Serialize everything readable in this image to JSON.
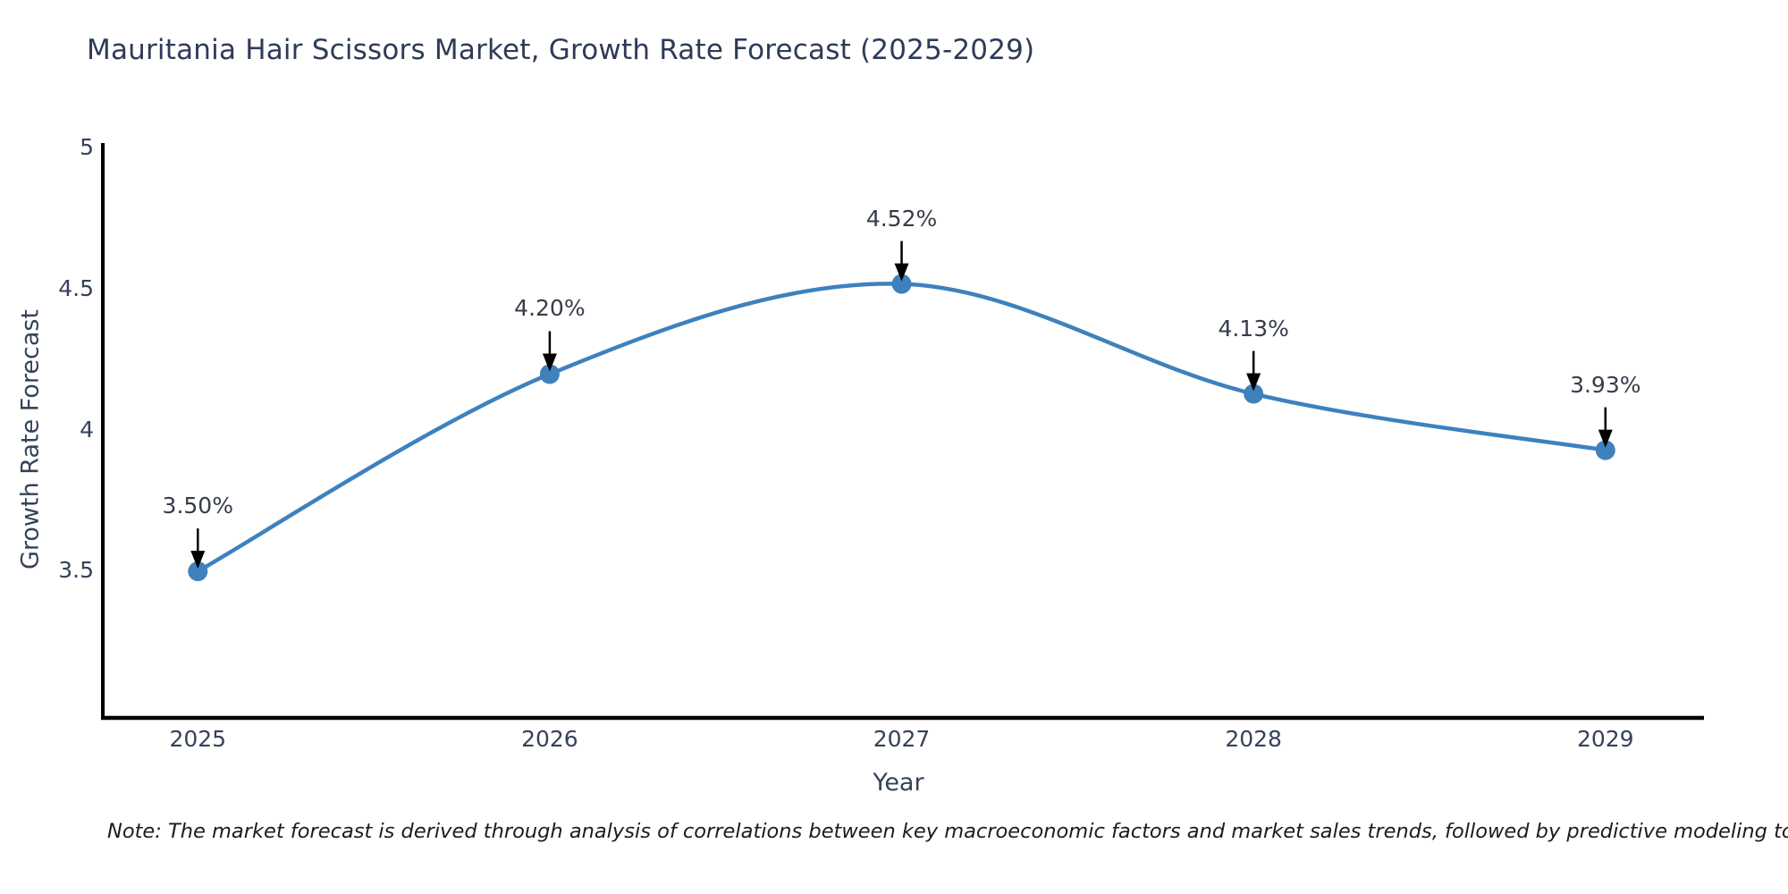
{
  "title": "Mauritania Hair Scissors Market, Growth Rate Forecast (2025-2029)",
  "note": "Note: The market forecast is derived through analysis of correlations between key macroeconomic factors and market sales trends, followed by predictive modeling to project future sales",
  "chart_data": {
    "type": "line",
    "title": "Mauritania Hair Scissors Market, Growth Rate Forecast (2025-2029)",
    "xlabel": "Year",
    "ylabel": "Growth Rate Forecast",
    "x": [
      2025,
      2026,
      2027,
      2028,
      2029
    ],
    "values": [
      3.5,
      4.2,
      4.52,
      4.13,
      3.93
    ],
    "point_labels": [
      "3.50%",
      "4.20%",
      "4.52%",
      "4.13%",
      "3.93%"
    ],
    "xticks": [
      2025,
      2026,
      2027,
      2028,
      2029
    ],
    "xtick_labels": [
      "2025",
      "2026",
      "2027",
      "2028",
      "2029"
    ],
    "yticks": [
      3.5,
      4.0,
      4.5,
      5.0
    ],
    "ytick_labels": [
      "3.5",
      "4",
      "4.5",
      "5"
    ],
    "xlim": [
      2024.73,
      2029.28
    ],
    "ylim": [
      2.98,
      5.02
    ],
    "grid": false,
    "legend": null,
    "line_color": "#3e81bd",
    "marker_color": "#3e81bd",
    "annotation_arrow_color": "#000000",
    "axis_color": "#000000",
    "smooth": true
  }
}
